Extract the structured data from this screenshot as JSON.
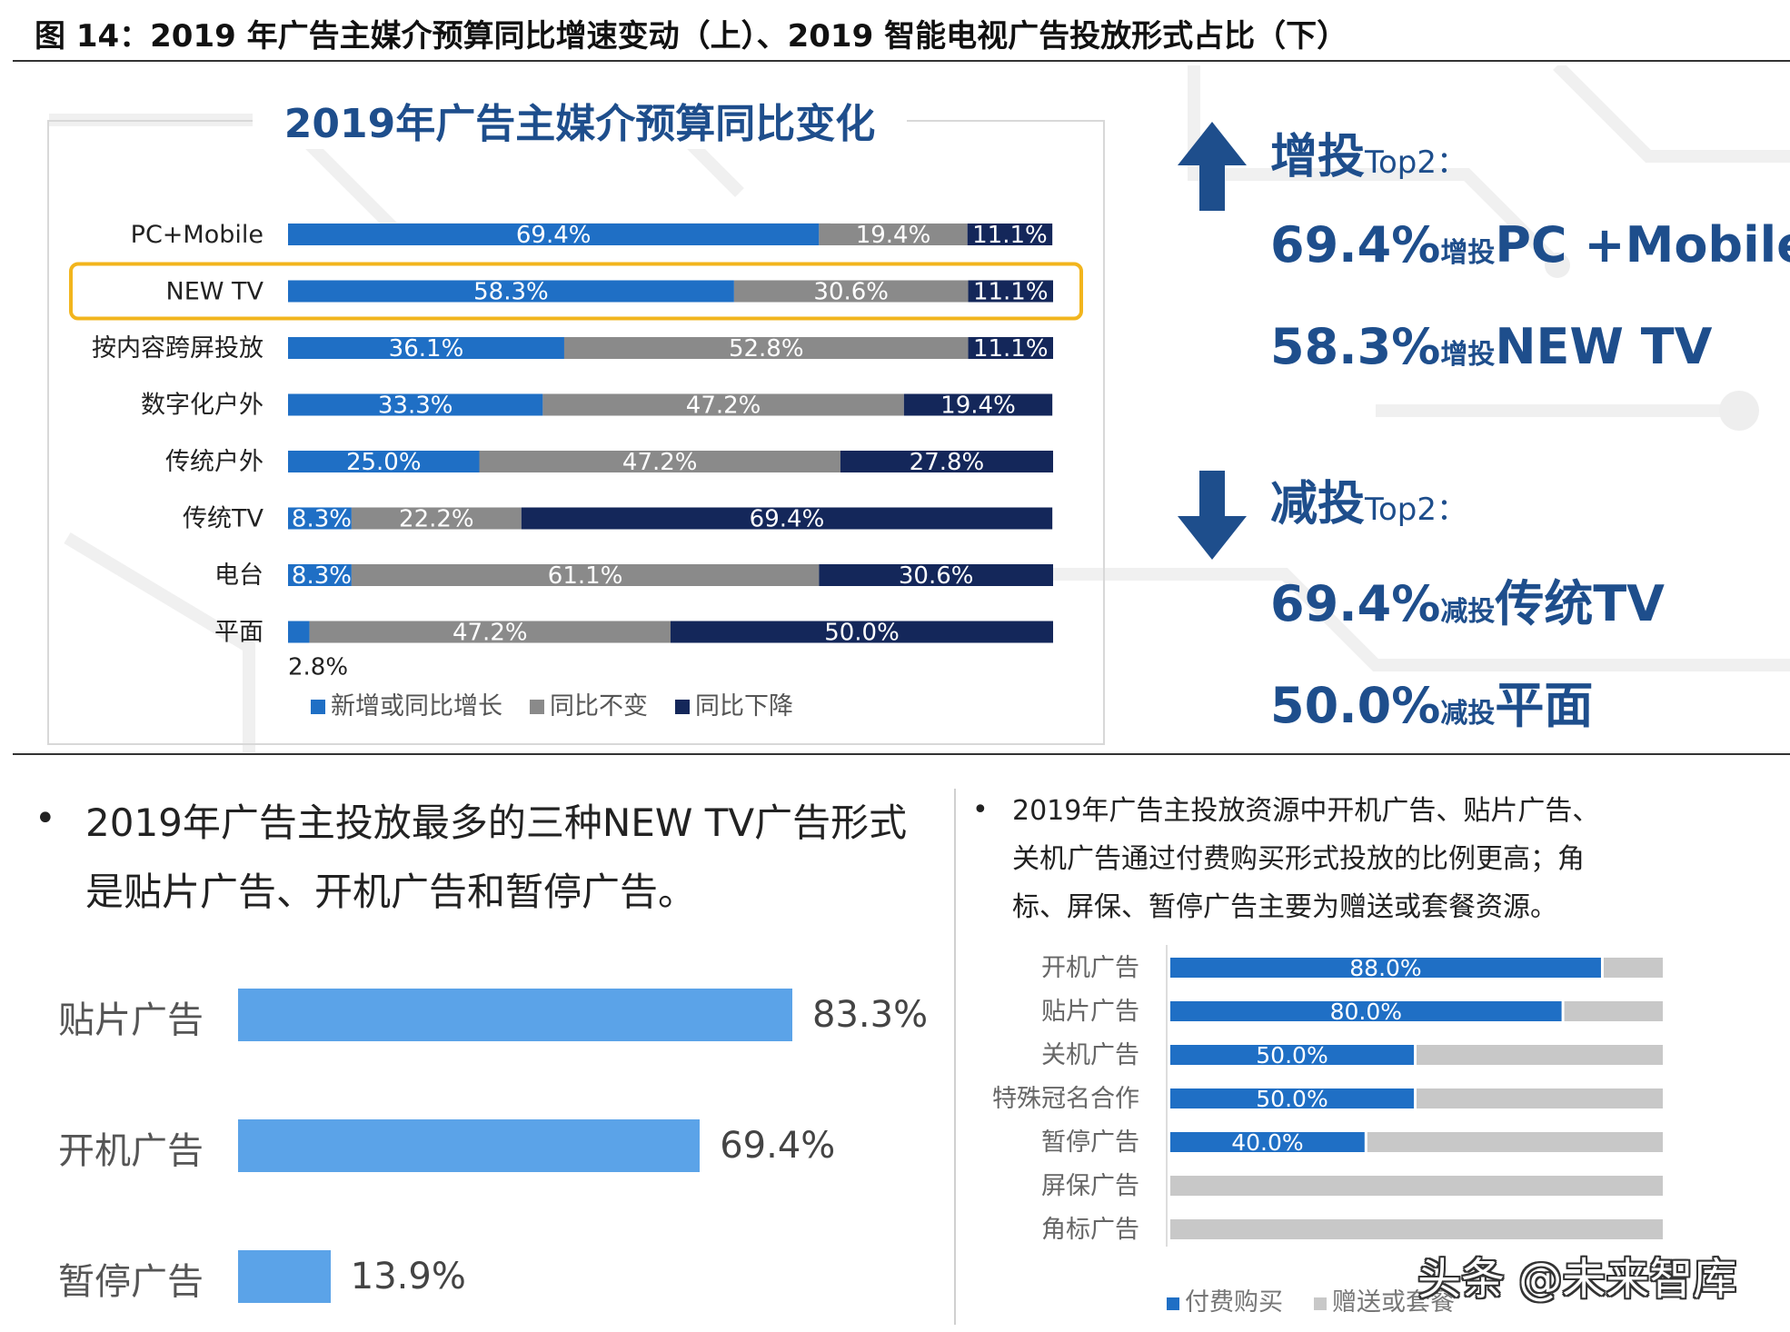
{
  "figure_title": "图 14：2019 年广告主媒介预算同比增速变动（上）、2019 智能电视广告投放形式占比（下）",
  "colors": {
    "blue": "#1f6fc5",
    "gray": "#8a8a8a",
    "navy": "#14275a",
    "light_blue": "#5ba3e8",
    "light_gray": "#c8c8c8",
    "highlight": "#f2b51d",
    "text_blue": "#1e4e8c"
  },
  "chart_data": [
    {
      "type": "bar",
      "stacked": true,
      "orientation": "horizontal",
      "title": "2019年广告主媒介预算同比变化",
      "categories": [
        "PC+Mobile",
        "NEW TV",
        "按内容跨屏投放",
        "数字化户外",
        "传统户外",
        "传统TV",
        "电台",
        "平面"
      ],
      "series": [
        {
          "name": "新增或同比增长",
          "values": [
            69.4,
            58.3,
            36.1,
            33.3,
            25.0,
            8.3,
            8.3,
            2.8
          ],
          "labels": [
            "69.4%",
            "58.3%",
            "36.1%",
            "33.3%",
            "25.0%",
            "8.3%",
            "8.3%",
            "2.8%"
          ]
        },
        {
          "name": "同比不变",
          "values": [
            19.4,
            30.6,
            52.8,
            47.2,
            47.2,
            22.2,
            61.1,
            47.2
          ],
          "labels": [
            "19.4%",
            "30.6%",
            "52.8%",
            "47.2%",
            "47.2%",
            "22.2%",
            "61.1%",
            "47.2%"
          ]
        },
        {
          "name": "同比下降",
          "values": [
            11.1,
            11.1,
            11.1,
            19.4,
            27.8,
            69.4,
            30.6,
            50.0
          ],
          "labels": [
            "11.1%",
            "11.1%",
            "11.1%",
            "19.4%",
            "27.8%",
            "69.4%",
            "30.6%",
            "50.0%"
          ]
        }
      ],
      "highlighted_category": "NEW TV",
      "legend_position": "bottom"
    },
    {
      "type": "bar",
      "orientation": "horizontal",
      "categories": [
        "贴片广告",
        "开机广告",
        "暂停广告"
      ],
      "values": [
        83.3,
        69.4,
        13.9
      ],
      "labels": [
        "83.3%",
        "69.4%",
        "13.9%"
      ]
    },
    {
      "type": "bar",
      "stacked": true,
      "orientation": "horizontal",
      "categories": [
        "开机广告",
        "贴片广告",
        "关机广告",
        "特殊冠名合作",
        "暂停广告",
        "屏保广告",
        "角标广告"
      ],
      "series": [
        {
          "name": "付费购买",
          "values": [
            88.0,
            80.0,
            50.0,
            50.0,
            40.0,
            0,
            0
          ],
          "labels": [
            "88.0%",
            "80.0%",
            "50.0%",
            "50.0%",
            "40.0%",
            "",
            ""
          ]
        },
        {
          "name": "赠送或套餐",
          "values": [
            12.0,
            20.0,
            50.0,
            50.0,
            60.0,
            100,
            100
          ]
        }
      ],
      "legend_position": "bottom"
    }
  ],
  "right_panel": {
    "increase_head": "增投",
    "increase_top2": "Top2",
    "colon": "：",
    "inc1_pct": "69.4%",
    "inc1_small": "增投",
    "inc1_name": "PC +Mobile",
    "inc2_pct": "58.3%",
    "inc2_small": "增投",
    "inc2_name": "NEW TV",
    "decrease_head": "减投",
    "decrease_top2": "Top2",
    "dec1_pct": "69.4%",
    "dec1_small": "减投",
    "dec1_name": "传统TV",
    "dec2_pct": "50.0%",
    "dec2_small": "减投",
    "dec2_name": "平面",
    "up_arrow_icon": "arrow-up-icon",
    "down_arrow_icon": "arrow-down-icon"
  },
  "bottom_left": {
    "bullet": "•",
    "line1": "2019年广告主投放最多的三种NEW TV广告形式",
    "line2": "是贴片广告、开机广告和暂停广告。"
  },
  "bottom_right": {
    "bullet": "•",
    "line1": "2019年广告主投放资源中开机广告、贴片广告、",
    "line2": "关机广告通过付费购买形式投放的比例更高；角",
    "line3": "标、屏保、暂停广告主要为赠送或套餐资源。"
  },
  "watermark": "头条 @未来智库"
}
